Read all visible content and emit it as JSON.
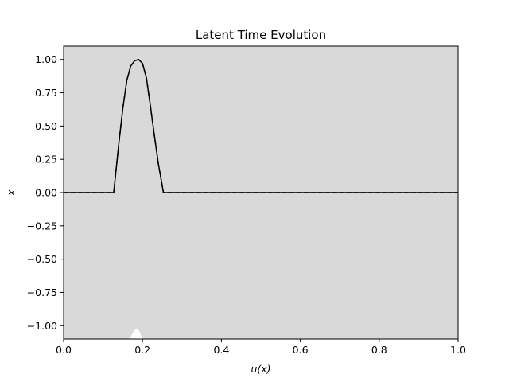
{
  "chart_data": {
    "type": "line",
    "title": "Latent Time Evolution",
    "xlabel": "u(x)",
    "ylabel": "x",
    "xlim": [
      0,
      1
    ],
    "ylim": [
      -1.1,
      1.1
    ],
    "xticks": [
      0.0,
      0.2,
      0.4,
      0.6,
      0.8,
      1.0
    ],
    "xtick_labels": [
      "0.0",
      "0.2",
      "0.4",
      "0.6",
      "0.8",
      "1.0"
    ],
    "yticks": [
      -1.0,
      -0.75,
      -0.5,
      -0.25,
      0.0,
      0.25,
      0.5,
      0.75,
      1.0
    ],
    "ytick_labels": [
      "−1.00",
      "−0.75",
      "−0.50",
      "−0.25",
      "0.00",
      "0.25",
      "0.50",
      "0.75",
      "1.00"
    ],
    "grid": false,
    "background_color": "#d9d9d9",
    "series": [
      {
        "style": "solid",
        "color": "#000000",
        "x": [
          0.0,
          0.05,
          0.1,
          0.127,
          0.14,
          0.15,
          0.16,
          0.17,
          0.18,
          0.19,
          0.2,
          0.21,
          0.22,
          0.23,
          0.24,
          0.253,
          0.3,
          0.4,
          0.5,
          0.6,
          0.7,
          0.8,
          0.9,
          1.0
        ],
        "y": [
          0.0,
          0.0,
          0.0,
          0.0,
          0.37,
          0.63,
          0.84,
          0.95,
          0.99,
          1.0,
          0.97,
          0.86,
          0.65,
          0.43,
          0.22,
          0.0,
          0.0,
          0.0,
          0.0,
          0.0,
          0.0,
          0.0,
          0.0,
          0.0
        ]
      },
      {
        "style": "dashed",
        "color": "#000000",
        "x": [
          0.0,
          0.05,
          0.1,
          0.127,
          0.14,
          0.15,
          0.16,
          0.17,
          0.18,
          0.19,
          0.2,
          0.21,
          0.22,
          0.23,
          0.24,
          0.253,
          0.3,
          0.4,
          0.5,
          0.6,
          0.7,
          0.8,
          0.9,
          1.0
        ],
        "y": [
          0.0,
          0.0,
          0.0,
          0.0,
          0.37,
          0.63,
          0.84,
          0.95,
          0.99,
          1.0,
          0.97,
          0.86,
          0.65,
          0.43,
          0.22,
          0.0,
          0.0,
          0.0,
          0.0,
          0.0,
          0.0,
          0.0,
          0.0,
          0.0
        ]
      }
    ],
    "shapes": [
      {
        "kind": "white-bump",
        "color": "#ffffff",
        "x": [
          0.168,
          0.172,
          0.178,
          0.184,
          0.19,
          0.196,
          0.2
        ],
        "y": [
          -1.1,
          -1.07,
          -1.04,
          -1.02,
          -1.03,
          -1.07,
          -1.1
        ]
      }
    ]
  }
}
